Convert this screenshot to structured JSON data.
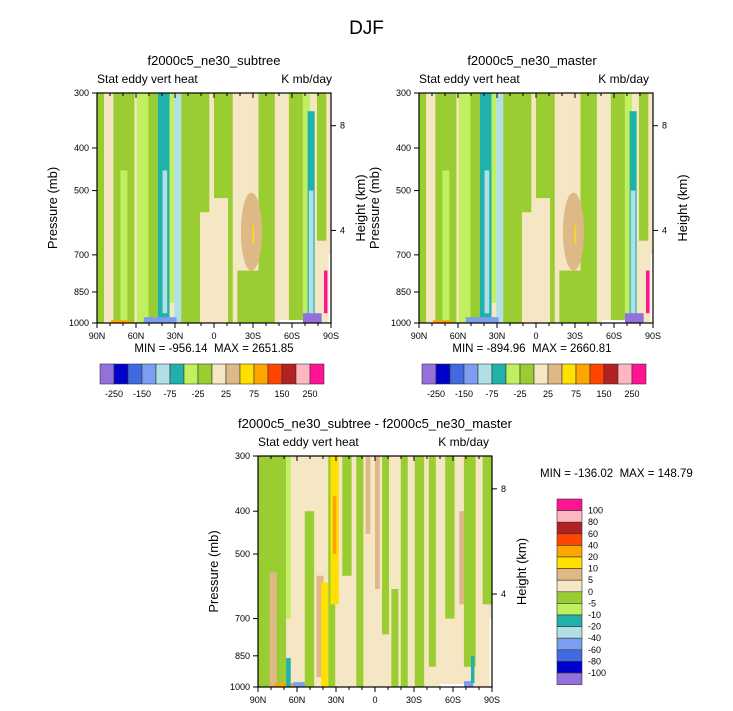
{
  "main_title": "DJF",
  "chart_data": [
    {
      "type": "heatmap",
      "title": "f2000c5_ne30_subtree",
      "left_label": "Stat eddy vert heat",
      "right_label": "K mb/day",
      "xlabel": "",
      "ylabel": "Pressure (mb)",
      "y2label": "Height (km)",
      "x_ticks": [
        "90N",
        "60N",
        "30N",
        "0",
        "30S",
        "60S",
        "90S"
      ],
      "y_ticks": [
        "300",
        "400",
        "500",
        "700",
        "850",
        "1000"
      ],
      "y2_ticks": [
        "8",
        "4"
      ],
      "ylim": [
        1000,
        300
      ],
      "min_label": "MIN = -956.14",
      "max_label": "MAX = 2651.85",
      "field_style": "model"
    },
    {
      "type": "heatmap",
      "title": "f2000c5_ne30_master",
      "left_label": "Stat eddy vert heat",
      "right_label": "K mb/day",
      "xlabel": "",
      "ylabel": "Pressure (mb)",
      "y2label": "Height (km)",
      "x_ticks": [
        "90N",
        "60N",
        "30N",
        "0",
        "30S",
        "60S",
        "90S"
      ],
      "y_ticks": [
        "300",
        "400",
        "500",
        "700",
        "850",
        "1000"
      ],
      "y2_ticks": [
        "8",
        "4"
      ],
      "ylim": [
        1000,
        300
      ],
      "min_label": "MIN = -894.96",
      "max_label": "MAX = 2660.81",
      "field_style": "model"
    },
    {
      "type": "heatmap",
      "title": "f2000c5_ne30_subtree - f2000c5_ne30_master",
      "left_label": "Stat eddy vert heat",
      "right_label": "K mb/day",
      "xlabel": "",
      "ylabel": "Pressure (mb)",
      "y2label": "Height (km)",
      "x_ticks": [
        "90N",
        "60N",
        "30N",
        "0",
        "30S",
        "60S",
        "90S"
      ],
      "y_ticks": [
        "300",
        "400",
        "500",
        "700",
        "850",
        "1000"
      ],
      "y2_ticks": [
        "8",
        "4"
      ],
      "ylim": [
        1000,
        300
      ],
      "min_label": "MIN = -136.02",
      "max_label": "MAX = 148.79",
      "field_style": "diff"
    }
  ],
  "colorbar_model": {
    "colors": [
      "#9370DB",
      "#0000CD",
      "#4169E1",
      "#7B9EF0",
      "#B0E0E6",
      "#20B2AA",
      "#C0F060",
      "#9ACD32",
      "#F5E6C4",
      "#DEB887",
      "#FFE000",
      "#FFA500",
      "#FF4500",
      "#B22222",
      "#FFB6C1",
      "#FF1493"
    ],
    "labels": [
      "-250",
      "-150",
      "-75",
      "-25",
      "25",
      "75",
      "150",
      "250"
    ]
  },
  "colorbar_diff": {
    "colors": [
      "#FF1493",
      "#FFB6C1",
      "#B22222",
      "#FF4500",
      "#FFA500",
      "#FFE000",
      "#DEB887",
      "#F5E6C4",
      "#9ACD32",
      "#C0F060",
      "#20B2AA",
      "#B0E0E6",
      "#7B9EF0",
      "#4169E1",
      "#0000CD",
      "#9370DB"
    ],
    "labels": [
      "100",
      "80",
      "60",
      "40",
      "20",
      "10",
      "5",
      "0",
      "-5",
      "-10",
      "-20",
      "-40",
      "-60",
      "-80",
      "-100"
    ]
  }
}
